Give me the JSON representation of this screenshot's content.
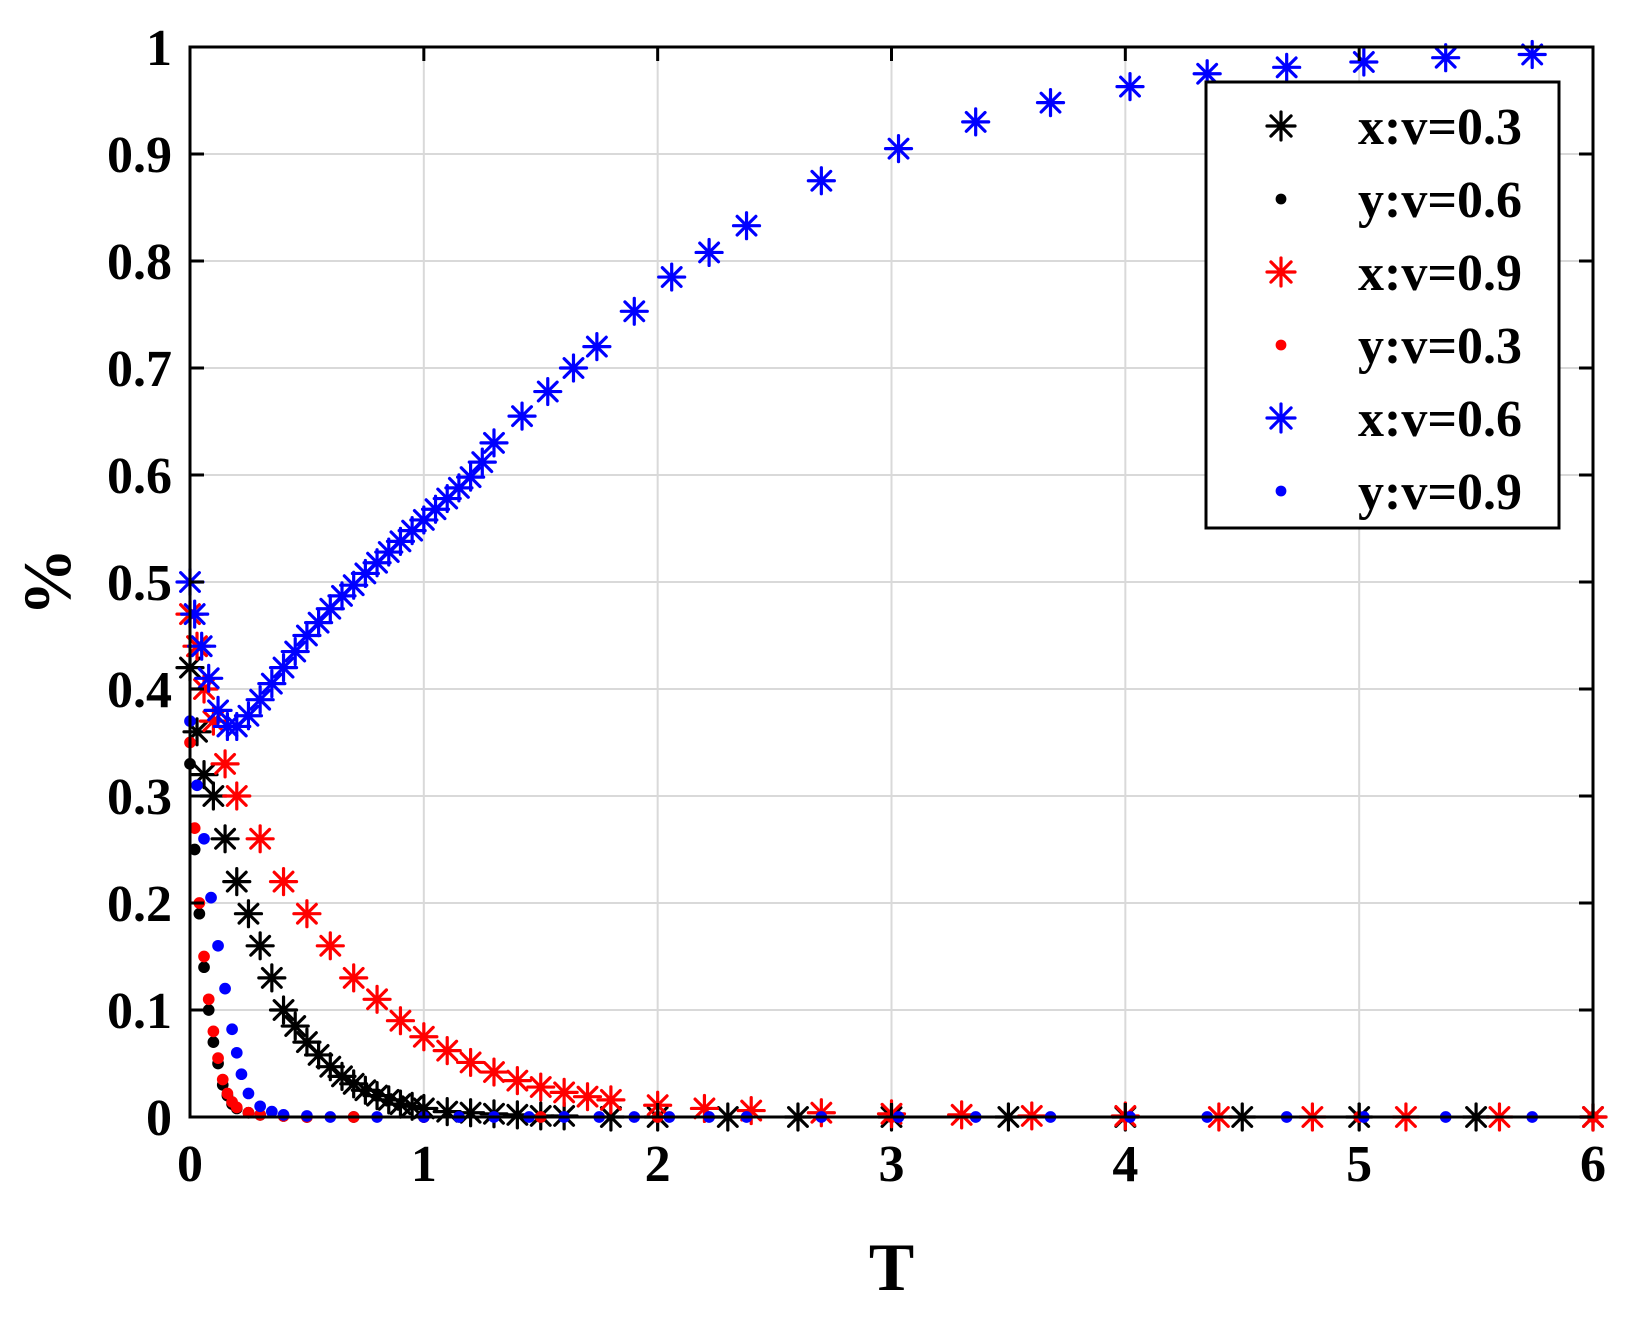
{
  "chart_data": {
    "type": "scatter",
    "title": "",
    "xlabel": "T",
    "ylabel": "%",
    "xlim": [
      0,
      6
    ],
    "ylim": [
      0,
      1
    ],
    "xticks": [
      0,
      1,
      2,
      3,
      4,
      5,
      6
    ],
    "yticks": [
      0,
      0.1,
      0.2,
      0.3,
      0.4,
      0.5,
      0.6,
      0.7,
      0.8,
      0.9,
      1
    ],
    "xtick_labels": [
      "0",
      "1",
      "2",
      "3",
      "4",
      "5",
      "6"
    ],
    "ytick_labels": [
      "0",
      "0.1",
      "0.2",
      "0.3",
      "0.4",
      "0.5",
      "0.6",
      "0.7",
      "0.8",
      "0.9",
      "1"
    ],
    "grid": true,
    "legend_position": "top-right",
    "series": [
      {
        "name": "x:v=0.3",
        "marker": "asterisk",
        "color": "#000000",
        "x": [
          0.0,
          0.03,
          0.06,
          0.1,
          0.15,
          0.2,
          0.25,
          0.3,
          0.35,
          0.4,
          0.45,
          0.5,
          0.55,
          0.6,
          0.65,
          0.7,
          0.75,
          0.8,
          0.85,
          0.9,
          0.95,
          1.0,
          1.1,
          1.2,
          1.3,
          1.4,
          1.5,
          1.6,
          1.8,
          2.0,
          2.3,
          2.6,
          3.0,
          3.5,
          4.0,
          4.5,
          5.0,
          5.5,
          6.0
        ],
        "y": [
          0.42,
          0.36,
          0.32,
          0.3,
          0.26,
          0.22,
          0.19,
          0.16,
          0.13,
          0.1,
          0.085,
          0.07,
          0.058,
          0.047,
          0.038,
          0.031,
          0.025,
          0.02,
          0.016,
          0.012,
          0.01,
          0.008,
          0.005,
          0.004,
          0.003,
          0.002,
          0.001,
          0.001,
          0.0,
          0.0,
          0.0,
          0.0,
          0.0,
          0.0,
          0.0,
          0.0,
          0.0,
          0.0,
          0.0
        ]
      },
      {
        "name": "y:v=0.6",
        "marker": "dot",
        "color": "#000000",
        "x": [
          0.0,
          0.02,
          0.04,
          0.06,
          0.08,
          0.1,
          0.12,
          0.14,
          0.16,
          0.18,
          0.2,
          0.25,
          0.3,
          0.4,
          0.5,
          0.7,
          1.0,
          1.5,
          2.0,
          3.0,
          4.0,
          5.0,
          6.0
        ],
        "y": [
          0.33,
          0.25,
          0.19,
          0.14,
          0.1,
          0.07,
          0.05,
          0.03,
          0.02,
          0.012,
          0.008,
          0.004,
          0.002,
          0.001,
          0.0,
          0.0,
          0.0,
          0.0,
          0.0,
          0.0,
          0.0,
          0.0,
          0.0
        ]
      },
      {
        "name": "x:v=0.9",
        "marker": "asterisk",
        "color": "#ff0000",
        "x": [
          0.0,
          0.03,
          0.06,
          0.1,
          0.15,
          0.2,
          0.3,
          0.4,
          0.5,
          0.6,
          0.7,
          0.8,
          0.9,
          1.0,
          1.1,
          1.2,
          1.3,
          1.4,
          1.5,
          1.6,
          1.7,
          1.8,
          2.0,
          2.2,
          2.4,
          2.7,
          3.0,
          3.3,
          3.6,
          4.0,
          4.4,
          4.8,
          5.2,
          5.6,
          6.0
        ],
        "y": [
          0.47,
          0.44,
          0.4,
          0.37,
          0.33,
          0.3,
          0.26,
          0.22,
          0.19,
          0.16,
          0.13,
          0.11,
          0.09,
          0.075,
          0.062,
          0.051,
          0.042,
          0.034,
          0.028,
          0.023,
          0.019,
          0.016,
          0.011,
          0.008,
          0.006,
          0.004,
          0.003,
          0.002,
          0.001,
          0.001,
          0.0,
          0.0,
          0.0,
          0.0,
          0.0
        ]
      },
      {
        "name": "y:v=0.3",
        "marker": "dot",
        "color": "#ff0000",
        "x": [
          0.0,
          0.02,
          0.04,
          0.06,
          0.08,
          0.1,
          0.12,
          0.14,
          0.16,
          0.18,
          0.2,
          0.25,
          0.3,
          0.4,
          0.5,
          0.7,
          1.0,
          1.5,
          2.0,
          3.0,
          4.0,
          5.0,
          6.0
        ],
        "y": [
          0.35,
          0.27,
          0.2,
          0.15,
          0.11,
          0.08,
          0.055,
          0.035,
          0.022,
          0.014,
          0.009,
          0.004,
          0.002,
          0.001,
          0.0,
          0.0,
          0.0,
          0.0,
          0.0,
          0.0,
          0.0,
          0.0,
          0.0
        ]
      },
      {
        "name": "x:v=0.6",
        "marker": "asterisk",
        "color": "#0000ff",
        "x": [
          0.0,
          0.02,
          0.05,
          0.08,
          0.12,
          0.16,
          0.2,
          0.25,
          0.3,
          0.35,
          0.4,
          0.45,
          0.5,
          0.55,
          0.6,
          0.65,
          0.7,
          0.75,
          0.8,
          0.85,
          0.9,
          0.95,
          1.0,
          1.05,
          1.1,
          1.15,
          1.2,
          1.25,
          1.3,
          1.42,
          1.53,
          1.64,
          1.74,
          1.9,
          2.06,
          2.22,
          2.38,
          2.7,
          3.03,
          3.36,
          3.68,
          4.02,
          4.35,
          4.69,
          5.02,
          5.37,
          5.74
        ],
        "y": [
          0.5,
          0.47,
          0.44,
          0.41,
          0.38,
          0.365,
          0.365,
          0.375,
          0.39,
          0.405,
          0.42,
          0.435,
          0.45,
          0.462,
          0.475,
          0.487,
          0.497,
          0.508,
          0.518,
          0.528,
          0.538,
          0.548,
          0.558,
          0.568,
          0.578,
          0.588,
          0.598,
          0.612,
          0.63,
          0.655,
          0.678,
          0.7,
          0.72,
          0.753,
          0.785,
          0.808,
          0.833,
          0.875,
          0.905,
          0.93,
          0.948,
          0.963,
          0.975,
          0.981,
          0.986,
          0.99,
          0.993
        ]
      },
      {
        "name": "y:v=0.9",
        "marker": "dot",
        "color": "#0000ff",
        "x": [
          0.0,
          0.03,
          0.06,
          0.09,
          0.12,
          0.15,
          0.18,
          0.2,
          0.22,
          0.25,
          0.3,
          0.35,
          0.4,
          0.5,
          0.6,
          0.8,
          1.0,
          1.15,
          1.3,
          1.45,
          1.6,
          1.75,
          1.9,
          2.05,
          2.22,
          2.38,
          2.7,
          3.03,
          3.36,
          3.68,
          4.02,
          4.35,
          4.69,
          5.02,
          5.37,
          5.74
        ],
        "y": [
          0.37,
          0.31,
          0.26,
          0.205,
          0.16,
          0.12,
          0.082,
          0.06,
          0.04,
          0.022,
          0.01,
          0.005,
          0.002,
          0.001,
          0.0,
          0.0,
          0.0,
          0.0,
          0.0,
          0.0,
          0.0,
          0.0,
          0.0,
          0.0,
          0.0,
          0.0,
          0.0,
          0.0,
          0.0,
          0.0,
          0.0,
          0.0,
          0.0,
          0.0,
          0.0,
          0.0
        ]
      }
    ]
  }
}
